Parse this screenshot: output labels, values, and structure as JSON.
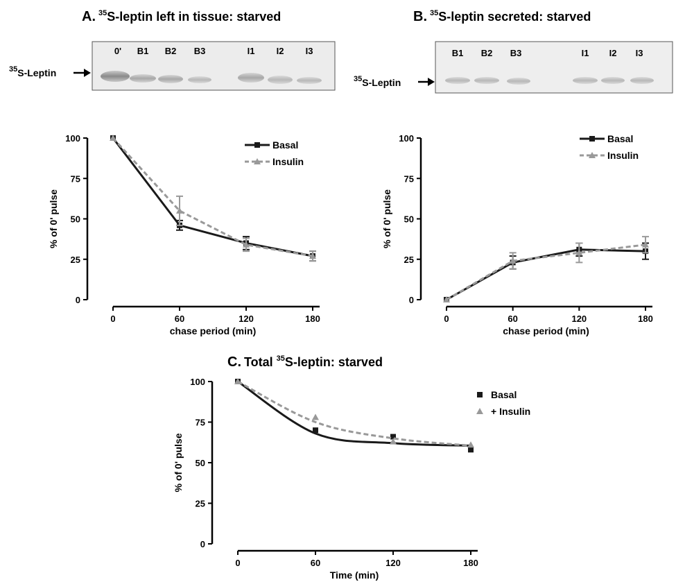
{
  "panels": {
    "A": {
      "letter": "A.",
      "title_sup": "35",
      "title_rest": "S-leptin left in tissue: starved",
      "blot": {
        "protein_sup": "35",
        "protein_rest": "S-Leptin",
        "lanes": [
          "0'",
          "B1",
          "B2",
          "B3",
          "I1",
          "I2",
          "I3"
        ]
      }
    },
    "B": {
      "letter": "B.",
      "title_sup": "35",
      "title_rest": "S-leptin secreted: starved",
      "blot": {
        "protein_sup": "35",
        "protein_rest": "S-Leptin",
        "lanes": [
          "B1",
          "B2",
          "B3",
          "I1",
          "I2",
          "I3"
        ]
      }
    },
    "C": {
      "letter": "C.",
      "title_pre": "Total ",
      "title_sup": "35",
      "title_rest": "S-leptin: starved"
    }
  },
  "chart_data": [
    {
      "panel": "A",
      "type": "line",
      "xlabel": "chase period (min)",
      "ylabel": "% of 0' pulse",
      "x_ticks": [
        "0",
        "60",
        "120",
        "180"
      ],
      "y_ticks": [
        "0",
        "25",
        "50",
        "75",
        "100"
      ],
      "xlim": [
        0,
        180
      ],
      "ylim": [
        0,
        100
      ],
      "x": [
        0,
        60,
        120,
        180
      ],
      "series": [
        {
          "name": "Basal",
          "values": [
            100,
            46,
            35,
            27
          ],
          "error": [
            0,
            3,
            4,
            3
          ],
          "color": "#1a1a1a",
          "style": "solid",
          "marker": "square"
        },
        {
          "name": "Insulin",
          "values": [
            100,
            55,
            34,
            27
          ],
          "error": [
            0,
            9,
            4,
            3
          ],
          "color": "#999999",
          "style": "dashed",
          "marker": "triangle"
        }
      ]
    },
    {
      "panel": "B",
      "type": "line",
      "xlabel": "chase period (min)",
      "ylabel": "% of 0' pulse",
      "x_ticks": [
        "0",
        "60",
        "120",
        "180"
      ],
      "y_ticks": [
        "0",
        "25",
        "50",
        "75",
        "100"
      ],
      "xlim": [
        0,
        180
      ],
      "ylim": [
        0,
        100
      ],
      "x": [
        0,
        60,
        120,
        180
      ],
      "series": [
        {
          "name": "Basal",
          "values": [
            0,
            23,
            31,
            30
          ],
          "error": [
            0,
            4,
            4,
            5
          ],
          "color": "#1a1a1a",
          "style": "solid",
          "marker": "square"
        },
        {
          "name": "Insulin",
          "values": [
            0,
            24,
            29,
            34
          ],
          "error": [
            0,
            5,
            6,
            5
          ],
          "color": "#999999",
          "style": "dashed",
          "marker": "triangle"
        }
      ]
    },
    {
      "panel": "C",
      "type": "scatter",
      "xlabel": "Time (min)",
      "ylabel": "% of 0' pulse",
      "x_ticks": [
        "0",
        "60",
        "120",
        "180"
      ],
      "y_ticks": [
        "0",
        "25",
        "50",
        "75",
        "100"
      ],
      "xlim": [
        0,
        180
      ],
      "ylim": [
        0,
        100
      ],
      "x": [
        0,
        60,
        120,
        180
      ],
      "series": [
        {
          "name": "Basal",
          "values": [
            100,
            70,
            66,
            58
          ],
          "color": "#1a1a1a",
          "style": "solid",
          "marker": "square",
          "fit": [
            100,
            68,
            62,
            60.5
          ]
        },
        {
          "name": "+ Insulin",
          "values": [
            100,
            78,
            63,
            61
          ],
          "color": "#999999",
          "style": "dashed",
          "marker": "triangle",
          "fit": [
            100,
            75,
            65,
            60.5
          ]
        }
      ]
    }
  ]
}
